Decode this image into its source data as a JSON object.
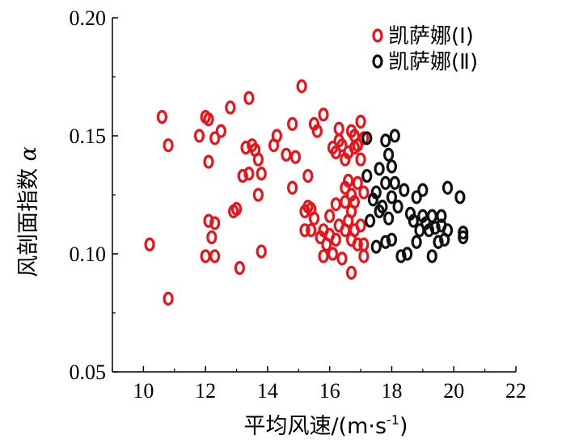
{
  "chart_data": {
    "type": "scatter",
    "title": "",
    "xlabel": "平均风速/(m·s",
    "xlabel_sup": "-1",
    "xlabel_tail": ")",
    "ylabel": "风剖面指数",
    "ylabel_symbol": "α",
    "xlim": [
      9,
      22
    ],
    "ylim": [
      0.05,
      0.2
    ],
    "xticks": [
      10,
      12,
      14,
      16,
      18,
      20,
      22
    ],
    "yticks": [
      0.05,
      0.1,
      0.15,
      0.2
    ],
    "xtick_labels": [
      "10",
      "12",
      "14",
      "16",
      "18",
      "20",
      "22"
    ],
    "ytick_labels": [
      "0.05",
      "0.10",
      "0.15",
      "0.20"
    ],
    "grid": false,
    "legend_position": "top-right",
    "series": [
      {
        "name": "凯萨娜(Ⅰ)",
        "color": "#e8141c",
        "marker": "hollow-ellipse",
        "points": [
          [
            10.2,
            0.104
          ],
          [
            10.6,
            0.158
          ],
          [
            10.8,
            0.146
          ],
          [
            10.8,
            0.081
          ],
          [
            11.8,
            0.15
          ],
          [
            12.0,
            0.158
          ],
          [
            12.1,
            0.157
          ],
          [
            12.1,
            0.139
          ],
          [
            12.0,
            0.099
          ],
          [
            12.1,
            0.114
          ],
          [
            12.2,
            0.107
          ],
          [
            12.3,
            0.113
          ],
          [
            12.3,
            0.099
          ],
          [
            12.3,
            0.149
          ],
          [
            12.5,
            0.152
          ],
          [
            12.8,
            0.162
          ],
          [
            12.9,
            0.118
          ],
          [
            13.0,
            0.119
          ],
          [
            13.1,
            0.094
          ],
          [
            13.2,
            0.133
          ],
          [
            13.3,
            0.145
          ],
          [
            13.4,
            0.166
          ],
          [
            13.4,
            0.134
          ],
          [
            13.5,
            0.146
          ],
          [
            13.6,
            0.144
          ],
          [
            13.7,
            0.14
          ],
          [
            13.7,
            0.125
          ],
          [
            13.8,
            0.134
          ],
          [
            13.8,
            0.101
          ],
          [
            14.2,
            0.146
          ],
          [
            14.3,
            0.15
          ],
          [
            14.6,
            0.142
          ],
          [
            14.8,
            0.155
          ],
          [
            14.8,
            0.128
          ],
          [
            14.9,
            0.141
          ],
          [
            15.1,
            0.171
          ],
          [
            15.2,
            0.118
          ],
          [
            15.2,
            0.11
          ],
          [
            15.3,
            0.12
          ],
          [
            15.3,
            0.133
          ],
          [
            15.4,
            0.119
          ],
          [
            15.4,
            0.11
          ],
          [
            15.5,
            0.115
          ],
          [
            15.5,
            0.155
          ],
          [
            15.6,
            0.152
          ],
          [
            15.7,
            0.107
          ],
          [
            15.8,
            0.159
          ],
          [
            15.8,
            0.11
          ],
          [
            15.8,
            0.099
          ],
          [
            15.9,
            0.104
          ],
          [
            16.0,
            0.116
          ],
          [
            16.0,
            0.108
          ],
          [
            16.1,
            0.1
          ],
          [
            16.1,
            0.145
          ],
          [
            16.2,
            0.143
          ],
          [
            16.2,
            0.106
          ],
          [
            16.2,
            0.121
          ],
          [
            16.3,
            0.153
          ],
          [
            16.3,
            0.148
          ],
          [
            16.3,
            0.112
          ],
          [
            16.4,
            0.098
          ],
          [
            16.4,
            0.146
          ],
          [
            16.5,
            0.14
          ],
          [
            16.5,
            0.128
          ],
          [
            16.5,
            0.122
          ],
          [
            16.5,
            0.11
          ],
          [
            16.6,
            0.143
          ],
          [
            16.6,
            0.131
          ],
          [
            16.6,
            0.114
          ],
          [
            16.7,
            0.152
          ],
          [
            16.7,
            0.125
          ],
          [
            16.7,
            0.118
          ],
          [
            16.7,
            0.106
          ],
          [
            16.7,
            0.092
          ],
          [
            16.8,
            0.15
          ],
          [
            16.8,
            0.145
          ],
          [
            16.8,
            0.122
          ],
          [
            16.8,
            0.11
          ],
          [
            16.9,
            0.146
          ],
          [
            16.9,
            0.13
          ],
          [
            16.9,
            0.104
          ],
          [
            17.0,
            0.156
          ],
          [
            17.0,
            0.14
          ],
          [
            17.0,
            0.112
          ],
          [
            17.1,
            0.149
          ],
          [
            17.1,
            0.126
          ],
          [
            17.1,
            0.104
          ],
          [
            17.1,
            0.099
          ]
        ]
      },
      {
        "name": "凯萨娜(Ⅱ)",
        "color": "#111111",
        "marker": "hollow-ellipse",
        "points": [
          [
            17.2,
            0.149
          ],
          [
            17.2,
            0.133
          ],
          [
            17.3,
            0.114
          ],
          [
            17.4,
            0.123
          ],
          [
            17.5,
            0.126
          ],
          [
            17.5,
            0.103
          ],
          [
            17.6,
            0.136
          ],
          [
            17.6,
            0.118
          ],
          [
            17.7,
            0.12
          ],
          [
            17.8,
            0.148
          ],
          [
            17.8,
            0.13
          ],
          [
            17.8,
            0.105
          ],
          [
            17.9,
            0.142
          ],
          [
            17.9,
            0.115
          ],
          [
            18.0,
            0.137
          ],
          [
            18.0,
            0.124
          ],
          [
            18.0,
            0.106
          ],
          [
            18.1,
            0.15
          ],
          [
            18.1,
            0.13
          ],
          [
            18.2,
            0.12
          ],
          [
            18.3,
            0.099
          ],
          [
            18.4,
            0.127
          ],
          [
            18.5,
            0.1
          ],
          [
            18.6,
            0.117
          ],
          [
            18.7,
            0.114
          ],
          [
            18.8,
            0.124
          ],
          [
            18.8,
            0.105
          ],
          [
            18.9,
            0.11
          ],
          [
            19.0,
            0.127
          ],
          [
            19.0,
            0.116
          ],
          [
            19.1,
            0.113
          ],
          [
            19.2,
            0.11
          ],
          [
            19.3,
            0.116
          ],
          [
            19.3,
            0.099
          ],
          [
            19.4,
            0.111
          ],
          [
            19.5,
            0.105
          ],
          [
            19.6,
            0.116
          ],
          [
            19.6,
            0.112
          ],
          [
            19.7,
            0.106
          ],
          [
            19.8,
            0.128
          ],
          [
            19.8,
            0.11
          ],
          [
            20.2,
            0.124
          ],
          [
            20.3,
            0.109
          ],
          [
            20.3,
            0.107
          ]
        ]
      }
    ]
  }
}
